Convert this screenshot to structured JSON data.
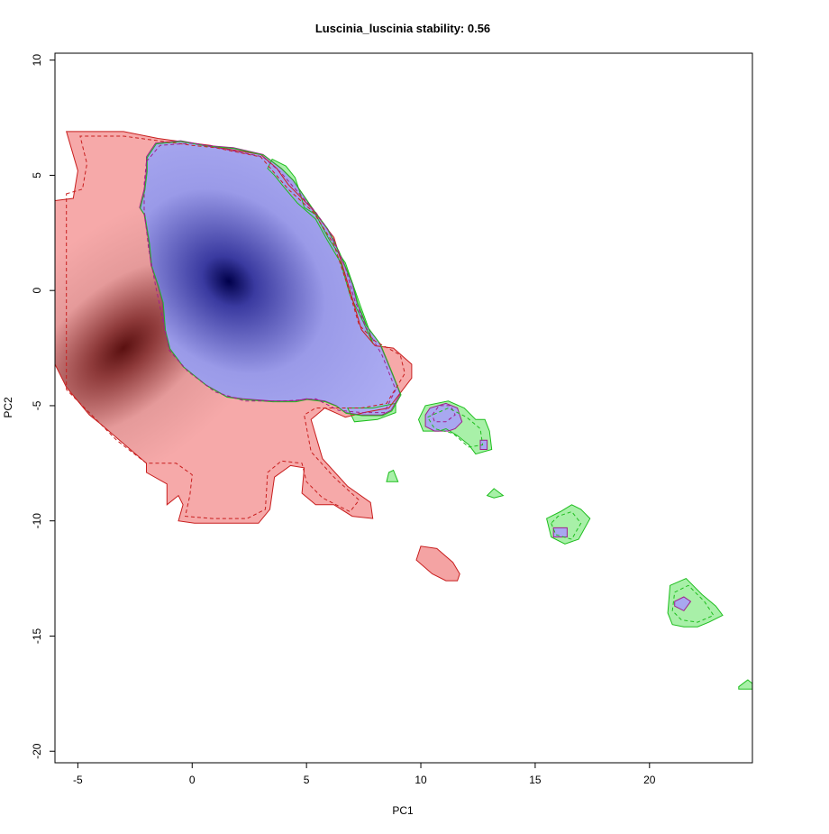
{
  "chart_data": {
    "type": "heatmap",
    "title": "Luscinia_luscinia stability: 0.56",
    "xlabel": "PC1",
    "ylabel": "PC2",
    "xlim": [
      -6,
      24.5
    ],
    "ylim": [
      -20.5,
      10.3
    ],
    "x_ticks": [
      -5,
      0,
      5,
      10,
      15,
      20
    ],
    "y_ticks": [
      -20,
      -15,
      -10,
      -5,
      0,
      5,
      10
    ],
    "grid": false,
    "legend": "none",
    "colors": {
      "native_fill": "#f4a3a3",
      "native_peak": "#5a1010",
      "native_contour": "#c81e1e",
      "invaded_fill": "#a8a8f0",
      "invaded_peak": "#00004a",
      "invaded_contour": "#a01e8c",
      "overlap_contour": "#1ebe1e",
      "green_fill": "#a8f0a8"
    },
    "density_peaks": [
      {
        "series": "native",
        "x": -3,
        "y": -2.5
      },
      {
        "series": "invaded",
        "x": 1.6,
        "y": 0.4
      }
    ],
    "regions": [
      {
        "series": "native",
        "points": [
          [
            -6,
            3.9
          ],
          [
            -5.2,
            4
          ],
          [
            -5,
            5.2
          ],
          [
            -5.5,
            6.9
          ],
          [
            -3,
            6.9
          ],
          [
            -1.5,
            6.6
          ],
          [
            0,
            6.4
          ],
          [
            0.8,
            6.3
          ],
          [
            1.2,
            6.2
          ],
          [
            3,
            5.9
          ],
          [
            3.7,
            5.3
          ],
          [
            4.2,
            4.6
          ],
          [
            5.2,
            3.6
          ],
          [
            6.2,
            2.3
          ],
          [
            6.9,
            0
          ],
          [
            7.4,
            -1.7
          ],
          [
            8,
            -2.4
          ],
          [
            8.8,
            -2.5
          ],
          [
            9.6,
            -3.2
          ],
          [
            9.6,
            -3.8
          ],
          [
            8.6,
            -5.1
          ],
          [
            7.5,
            -5.3
          ],
          [
            6.7,
            -5.5
          ],
          [
            5.8,
            -5.1
          ],
          [
            5.2,
            -5.6
          ],
          [
            5.7,
            -7.3
          ],
          [
            6.8,
            -8.5
          ],
          [
            7.8,
            -9.2
          ],
          [
            7.9,
            -9.9
          ],
          [
            7,
            -9.8
          ],
          [
            6.2,
            -9.3
          ],
          [
            5.4,
            -9.3
          ],
          [
            4.8,
            -8.8
          ],
          [
            4.9,
            -7.7
          ],
          [
            4.3,
            -7.6
          ],
          [
            3.6,
            -8.1
          ],
          [
            3.4,
            -9.5
          ],
          [
            2.9,
            -10.1
          ],
          [
            1.1,
            -10.1
          ],
          [
            0.1,
            -10.1
          ],
          [
            -0.6,
            -10
          ],
          [
            -0.4,
            -9.3
          ],
          [
            -0.6,
            -8.9
          ],
          [
            -1.1,
            -9.3
          ],
          [
            -1.1,
            -8.4
          ],
          [
            -2,
            -7.9
          ],
          [
            -2,
            -7.5
          ],
          [
            -4,
            -5.8
          ],
          [
            -4.5,
            -5.4
          ],
          [
            -5.5,
            -4.2
          ],
          [
            -6,
            -3.2
          ]
        ]
      },
      {
        "series": "invaded",
        "points": [
          [
            -2,
            5.8
          ],
          [
            -1.6,
            6.4
          ],
          [
            -0.5,
            6.5
          ],
          [
            0.6,
            6.3
          ],
          [
            1.8,
            6.2
          ],
          [
            3.1,
            5.9
          ],
          [
            3.9,
            5.3
          ],
          [
            4.4,
            4.8
          ],
          [
            5.3,
            3.5
          ],
          [
            5.9,
            2.7
          ],
          [
            6.4,
            1.7
          ],
          [
            7,
            0.3
          ],
          [
            7.2,
            -0.5
          ],
          [
            7.6,
            -1.5
          ],
          [
            8.2,
            -2.3
          ],
          [
            8.7,
            -3.5
          ],
          [
            9.1,
            -4.5
          ],
          [
            8.7,
            -5.2
          ],
          [
            8.3,
            -5.4
          ],
          [
            7.4,
            -5.4
          ],
          [
            6.7,
            -5.3
          ],
          [
            6.3,
            -5
          ],
          [
            5.8,
            -4.8
          ],
          [
            5,
            -4.7
          ],
          [
            4.5,
            -4.8
          ],
          [
            3.5,
            -4.8
          ],
          [
            2.2,
            -4.7
          ],
          [
            1.5,
            -4.6
          ],
          [
            0.6,
            -4.1
          ],
          [
            -0.4,
            -3.3
          ],
          [
            -0.7,
            -2.9
          ],
          [
            -1,
            -2.5
          ],
          [
            -1.2,
            -1.7
          ],
          [
            -1.3,
            -0.5
          ],
          [
            -1.5,
            0.2
          ],
          [
            -1.8,
            1.1
          ],
          [
            -1.9,
            2.1
          ],
          [
            -2.1,
            3.3
          ],
          [
            -2.3,
            3.6
          ],
          [
            -2.1,
            4.4
          ],
          [
            -2,
            5.2
          ]
        ]
      },
      {
        "series": "green",
        "points": [
          [
            3.3,
            5.3
          ],
          [
            3.5,
            5.7
          ],
          [
            4.1,
            5.4
          ],
          [
            4.5,
            4.9
          ],
          [
            4.7,
            4.3
          ],
          [
            4.9,
            3.6
          ],
          [
            5.4,
            3.3
          ],
          [
            6,
            2.2
          ],
          [
            6.7,
            1.2
          ],
          [
            7.3,
            -0.5
          ],
          [
            7.7,
            -1.6
          ],
          [
            7.9,
            -2.3
          ],
          [
            7.5,
            -1.4
          ],
          [
            6.9,
            -0.2
          ],
          [
            6.5,
            1.2
          ],
          [
            5.9,
            2.2
          ],
          [
            5.4,
            3.1
          ],
          [
            4.6,
            3.8
          ],
          [
            4,
            4.5
          ],
          [
            3.6,
            5
          ]
        ]
      },
      {
        "series": "green",
        "points": [
          [
            6.8,
            -5.1
          ],
          [
            7.1,
            -5.7
          ],
          [
            8.1,
            -5.6
          ],
          [
            8.9,
            -5.3
          ],
          [
            8.9,
            -4.9
          ],
          [
            7.9,
            -5.1
          ]
        ]
      },
      {
        "series": "green",
        "points": [
          [
            9.9,
            -5.6
          ],
          [
            10.2,
            -5
          ],
          [
            11.2,
            -4.8
          ],
          [
            11.9,
            -5.1
          ],
          [
            12.4,
            -5.6
          ],
          [
            12.8,
            -5.6
          ],
          [
            13,
            -6.1
          ],
          [
            13.1,
            -6.9
          ],
          [
            12.4,
            -7.1
          ],
          [
            12.1,
            -6.7
          ],
          [
            11.6,
            -6.3
          ],
          [
            11.1,
            -6
          ],
          [
            10.8,
            -6.1
          ],
          [
            10.1,
            -6.1
          ]
        ]
      },
      {
        "series": "invaded",
        "points": [
          [
            10.2,
            -5.4
          ],
          [
            10.4,
            -5.1
          ],
          [
            11.1,
            -4.9
          ],
          [
            11.6,
            -5.1
          ],
          [
            11.8,
            -5.7
          ],
          [
            11.5,
            -6
          ],
          [
            11.2,
            -6.1
          ],
          [
            10.6,
            -6.1
          ],
          [
            10.2,
            -5.9
          ]
        ]
      },
      {
        "series": "invaded",
        "points": [
          [
            12.6,
            -6.5
          ],
          [
            12.9,
            -6.5
          ],
          [
            12.9,
            -6.9
          ],
          [
            12.6,
            -6.9
          ]
        ]
      },
      {
        "series": "green",
        "points": [
          [
            8.6,
            -7.9
          ],
          [
            8.8,
            -7.8
          ],
          [
            9,
            -8.3
          ],
          [
            8.5,
            -8.3
          ]
        ]
      },
      {
        "series": "green",
        "points": [
          [
            12.9,
            -8.9
          ],
          [
            13.2,
            -8.6
          ],
          [
            13.6,
            -8.9
          ],
          [
            13.2,
            -9
          ]
        ]
      },
      {
        "series": "green",
        "points": [
          [
            15.5,
            -9.9
          ],
          [
            15.7,
            -10.7
          ],
          [
            16.3,
            -11
          ],
          [
            16.9,
            -10.8
          ],
          [
            17.4,
            -9.9
          ],
          [
            17,
            -9.5
          ],
          [
            16.6,
            -9.3
          ],
          [
            16.1,
            -9.6
          ]
        ]
      },
      {
        "series": "invaded",
        "points": [
          [
            15.8,
            -10.3
          ],
          [
            16.4,
            -10.3
          ],
          [
            16.4,
            -10.7
          ],
          [
            15.8,
            -10.7
          ]
        ]
      },
      {
        "series": "native",
        "points": [
          [
            9.8,
            -11.7
          ],
          [
            10,
            -11.1
          ],
          [
            10.7,
            -11.2
          ],
          [
            11.4,
            -11.8
          ],
          [
            11.7,
            -12.3
          ],
          [
            11.6,
            -12.6
          ],
          [
            11.1,
            -12.6
          ],
          [
            10.5,
            -12.3
          ]
        ]
      },
      {
        "series": "green",
        "points": [
          [
            20.9,
            -12.8
          ],
          [
            21.6,
            -12.5
          ],
          [
            22.3,
            -13.2
          ],
          [
            22.9,
            -13.7
          ],
          [
            23.2,
            -14.1
          ],
          [
            22.6,
            -14.4
          ],
          [
            22.1,
            -14.6
          ],
          [
            21.5,
            -14.6
          ],
          [
            21,
            -14.5
          ],
          [
            20.8,
            -14
          ]
        ]
      },
      {
        "series": "invaded",
        "points": [
          [
            21.1,
            -13.5
          ],
          [
            21.5,
            -13.3
          ],
          [
            21.8,
            -13.5
          ],
          [
            21.5,
            -13.9
          ],
          [
            21.1,
            -13.7
          ]
        ]
      },
      {
        "series": "green",
        "points": [
          [
            23.9,
            -17.2
          ],
          [
            24.3,
            -16.9
          ],
          [
            24.8,
            -17.3
          ],
          [
            23.9,
            -17.3
          ]
        ]
      }
    ],
    "dashed_contours": [
      {
        "series": "native",
        "points": [
          [
            -5.5,
            4.2
          ],
          [
            -4.8,
            4.4
          ],
          [
            -4.6,
            5.5
          ],
          [
            -4.9,
            6.7
          ],
          [
            -3,
            6.7
          ],
          [
            -1.5,
            6.5
          ],
          [
            0,
            6.3
          ],
          [
            1,
            6.2
          ],
          [
            2,
            6
          ],
          [
            3,
            5.8
          ],
          [
            3.6,
            5.1
          ],
          [
            4.2,
            4.4
          ],
          [
            5.3,
            3.4
          ],
          [
            6.2,
            2
          ],
          [
            6.8,
            0.2
          ],
          [
            7.3,
            -1.5
          ],
          [
            8,
            -2.2
          ],
          [
            9.1,
            -2.8
          ],
          [
            9.3,
            -3.6
          ],
          [
            8.5,
            -4.9
          ],
          [
            7.4,
            -5.1
          ],
          [
            6.3,
            -5.1
          ],
          [
            5.4,
            -5.1
          ],
          [
            4.9,
            -5.4
          ],
          [
            5.2,
            -7
          ],
          [
            6.2,
            -8.1
          ],
          [
            7.3,
            -9.1
          ],
          [
            6.9,
            -9.6
          ],
          [
            5.7,
            -9
          ],
          [
            5,
            -8.3
          ],
          [
            4.8,
            -7.5
          ],
          [
            3.9,
            -7.4
          ],
          [
            3.3,
            -7.9
          ],
          [
            3.2,
            -9.5
          ],
          [
            2.4,
            -9.9
          ],
          [
            0.9,
            -9.9
          ],
          [
            -0.3,
            -9.8
          ],
          [
            -0.1,
            -8.9
          ],
          [
            0,
            -8
          ],
          [
            -0.7,
            -7.5
          ],
          [
            -2,
            -7.5
          ],
          [
            -3.3,
            -6.5
          ],
          [
            -4.4,
            -5.4
          ],
          [
            -5.5,
            -4.3
          ]
        ]
      },
      {
        "series": "invaded",
        "points": [
          [
            -2,
            5.6
          ],
          [
            -1.4,
            6.3
          ],
          [
            0,
            6.4
          ],
          [
            1.6,
            6.1
          ],
          [
            3.1,
            5.8
          ],
          [
            3.9,
            5.1
          ],
          [
            4.6,
            4.3
          ],
          [
            5.4,
            3.4
          ],
          [
            6.1,
            2.4
          ],
          [
            6.7,
            1
          ],
          [
            7.1,
            -0.4
          ],
          [
            7.6,
            -1.6
          ],
          [
            8.3,
            -2.8
          ],
          [
            8.9,
            -4.3
          ],
          [
            8.4,
            -5.3
          ],
          [
            7.4,
            -5.3
          ],
          [
            6.4,
            -5.2
          ],
          [
            5.4,
            -4.7
          ],
          [
            4,
            -4.8
          ],
          [
            2.3,
            -4.8
          ],
          [
            1,
            -4.4
          ],
          [
            -0.2,
            -3.5
          ],
          [
            -1,
            -2.6
          ],
          [
            -1.3,
            -1.2
          ],
          [
            -1.6,
            0.2
          ],
          [
            -1.9,
            1.8
          ],
          [
            -2.1,
            3.5
          ],
          [
            -2.1,
            4.6
          ]
        ]
      },
      {
        "series": "invaded",
        "points": [
          [
            10.5,
            -5.4
          ],
          [
            10.8,
            -5
          ],
          [
            11.3,
            -5
          ],
          [
            11.5,
            -5.4
          ],
          [
            11.1,
            -5.7
          ],
          [
            10.6,
            -5.7
          ]
        ]
      },
      {
        "series": "green",
        "points": [
          [
            10.3,
            -5.5
          ],
          [
            11.2,
            -5.1
          ],
          [
            12,
            -5.5
          ],
          [
            12.6,
            -6
          ],
          [
            12.7,
            -6.7
          ],
          [
            12.1,
            -6.8
          ],
          [
            11.4,
            -6.2
          ],
          [
            10.6,
            -6
          ]
        ]
      },
      {
        "series": "green",
        "points": [
          [
            15.7,
            -10.1
          ],
          [
            15.9,
            -10.6
          ],
          [
            16.6,
            -10.8
          ],
          [
            17,
            -10.1
          ],
          [
            16.6,
            -9.6
          ],
          [
            16,
            -9.8
          ]
        ]
      },
      {
        "series": "green",
        "points": [
          [
            21.1,
            -13.1
          ],
          [
            21.7,
            -12.8
          ],
          [
            22.4,
            -13.5
          ],
          [
            22.8,
            -14.1
          ],
          [
            22.1,
            -14.4
          ],
          [
            21.4,
            -14.3
          ],
          [
            21,
            -13.9
          ]
        ]
      }
    ]
  }
}
